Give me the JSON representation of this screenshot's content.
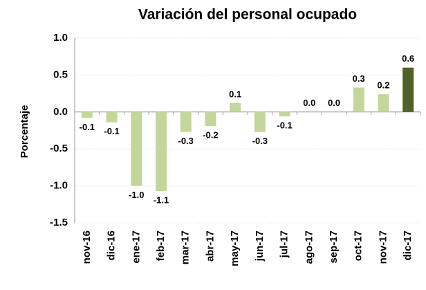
{
  "chart_data": {
    "type": "bar",
    "title": "Variación del personal ocupado",
    "y_label": "Porcentaje",
    "categories": [
      "nov-16",
      "dic-16",
      "ene-17",
      "feb-17",
      "mar-17",
      "abr-17",
      "may-17",
      "jun-17",
      "jul-17",
      "ago-17",
      "sep-17",
      "oct-17",
      "nov-17",
      "dic-17"
    ],
    "values": [
      -0.08,
      -0.14,
      -1.0,
      -1.07,
      -0.27,
      -0.19,
      0.12,
      -0.27,
      -0.06,
      0.0,
      0.0,
      0.33,
      0.24,
      0.6
    ],
    "value_labels": [
      "-0.1",
      "-0.1",
      "-1.0",
      "-1.1",
      "-0.3",
      "-0.2",
      "0.1",
      "-0.3",
      "-0.1",
      "0.0",
      "0.0",
      "0.3",
      "0.2",
      "0.6"
    ],
    "colors": [
      "#c3d69b",
      "#c3d69b",
      "#c3d69b",
      "#c3d69b",
      "#c3d69b",
      "#c3d69b",
      "#c3d69b",
      "#c3d69b",
      "#c3d69b",
      "#c3d69b",
      "#c3d69b",
      "#c3d69b",
      "#c3d69b",
      "#4f6228"
    ],
    "ylim": [
      -1.5,
      1.0
    ],
    "yticks": [
      {
        "value": 1.0,
        "label": "1.0"
      },
      0.5,
      {
        "value": 0.0,
        "label": "0.0"
      },
      -0.5,
      {
        "value": -1.0,
        "label": "-1.0"
      },
      -1.5
    ],
    "grid": true
  }
}
